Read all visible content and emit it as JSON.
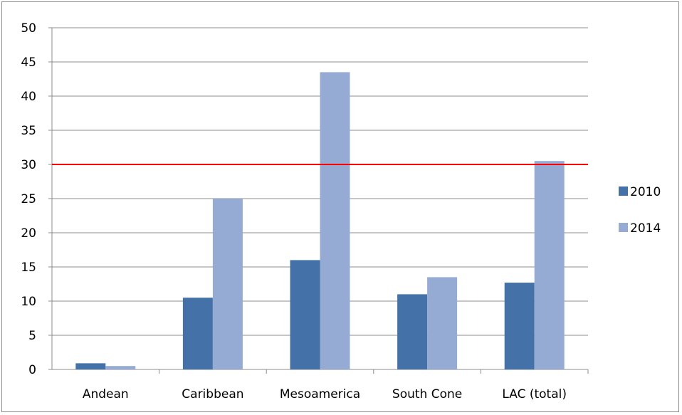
{
  "chart_data": {
    "type": "bar",
    "categories": [
      "Andean",
      "Caribbean",
      "Mesoamerica",
      "South Cone",
      "LAC (total)"
    ],
    "series": [
      {
        "name": "2010",
        "values": [
          0.9,
          10.5,
          16.0,
          11.0,
          12.7
        ]
      },
      {
        "name": "2014",
        "values": [
          0.5,
          25.0,
          43.5,
          13.5,
          30.5
        ]
      }
    ],
    "ylim": [
      0,
      50
    ],
    "yticks": [
      "0",
      "5",
      "10",
      "15",
      "20",
      "25",
      "30",
      "35",
      "40",
      "45",
      "50"
    ],
    "reference_line": {
      "value": 30,
      "color": "#ff0000"
    },
    "grid": true,
    "legend_position": "right",
    "colors": [
      "#4472a8",
      "#95abd3"
    ],
    "title": "",
    "xlabel": "",
    "ylabel": ""
  }
}
